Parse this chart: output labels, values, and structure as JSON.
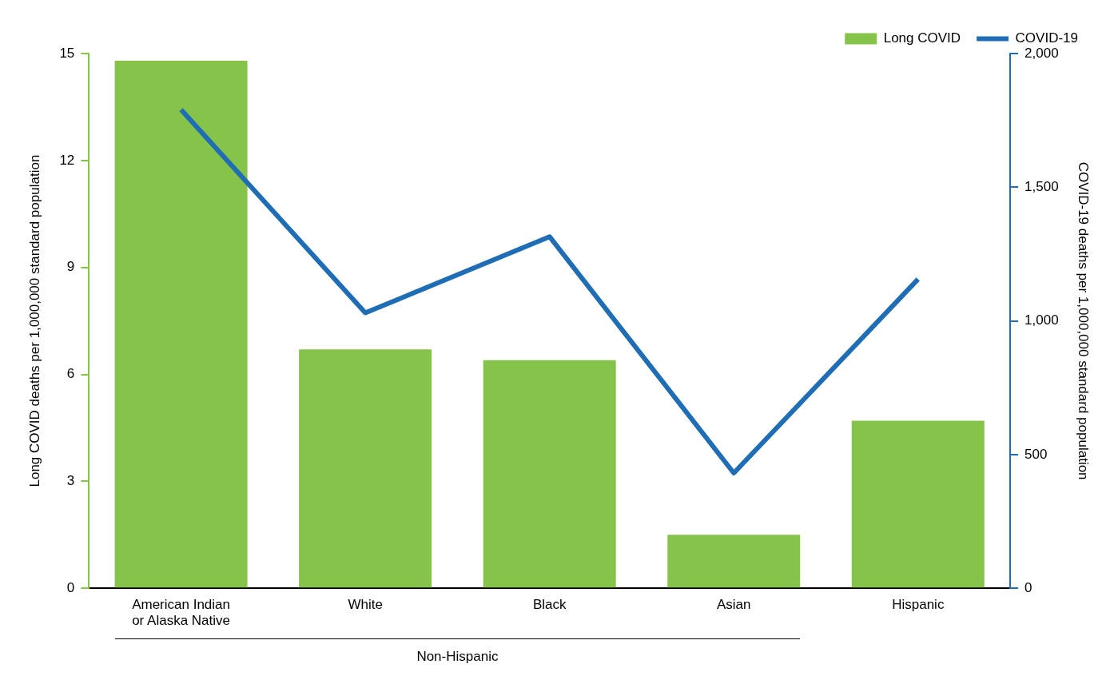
{
  "chart_data": {
    "type": "bar",
    "categories": [
      "American Indian\nor Alaska Native",
      "White",
      "Black",
      "Asian",
      "Hispanic"
    ],
    "ylabel": "Long COVID deaths per 1,000,000 standard population",
    "y2label": "COVID-19 deaths per 1,000,000 standard population",
    "ylim": [
      0,
      15
    ],
    "yticks": [
      0,
      3,
      6,
      9,
      12,
      15
    ],
    "y2lim": [
      0,
      2000
    ],
    "y2ticks": [
      0,
      {
        "value": 500,
        "label": "500"
      },
      {
        "value": 1000,
        "label": "1,000"
      },
      {
        "value": 1500,
        "label": "1,500"
      },
      {
        "value": 2000,
        "label": "2,000"
      }
    ],
    "series": [
      {
        "name": "Long COVID",
        "color": "#86c34a",
        "values": [
          14.8,
          6.7,
          6.4,
          1.5,
          4.7
        ]
      },
      {
        "name": "COVID-19",
        "type": "line",
        "axis": "y2",
        "color": "#1f6db4",
        "values": [
          1790,
          1030,
          1315,
          431,
          1156
        ]
      }
    ],
    "annotations": [
      "Non-Hispanic"
    ],
    "legend": "top right",
    "grid": false,
    "marker": "none",
    "line_style": "solid"
  }
}
